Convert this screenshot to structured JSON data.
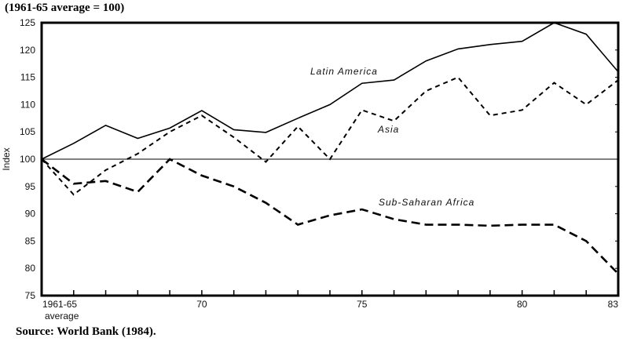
{
  "chart_data": {
    "type": "line",
    "title": "(1961-65 average = 100)",
    "source": "Source: World Bank (1984).",
    "xlabel": "",
    "ylabel": "Index",
    "x": [
      "1961-65 average",
      "66",
      "67",
      "68",
      "69",
      "70",
      "71",
      "72",
      "73",
      "74",
      "75",
      "76",
      "77",
      "78",
      "79",
      "80",
      "81",
      "82",
      "83"
    ],
    "x_tick_labels": [
      {
        "i": 0,
        "label": "1961-65",
        "sub": "average"
      },
      {
        "i": 5,
        "label": "70"
      },
      {
        "i": 10,
        "label": "75"
      },
      {
        "i": 15,
        "label": "80"
      },
      {
        "i": 18,
        "label": "83"
      }
    ],
    "ylim": [
      75,
      125
    ],
    "y_ticks": [
      75,
      80,
      85,
      90,
      95,
      100,
      105,
      110,
      115,
      120,
      125
    ],
    "reference_line": 100,
    "grid": false,
    "series": [
      {
        "name": "Latin America",
        "style": "solid",
        "values": [
          100,
          102.9,
          106.2,
          103.8,
          105.7,
          108.9,
          105.4,
          104.9,
          107.5,
          110,
          113.9,
          114.5,
          118,
          120.2,
          121,
          121.6,
          125,
          122.9,
          116
        ]
      },
      {
        "name": "Asia",
        "style": "short-dash",
        "values": [
          100,
          93.5,
          98,
          101,
          105,
          108,
          104,
          99.5,
          106,
          100,
          109,
          107,
          112.5,
          115,
          108,
          109,
          114,
          110,
          114.5
        ]
      },
      {
        "name": "Sub-Saharan Africa",
        "style": "long-dash",
        "values": [
          100,
          95.5,
          96,
          94,
          100,
          97,
          95,
          92,
          88,
          89.7,
          90.8,
          89,
          88,
          88,
          87.8,
          88,
          88,
          85,
          79
        ]
      }
    ]
  }
}
